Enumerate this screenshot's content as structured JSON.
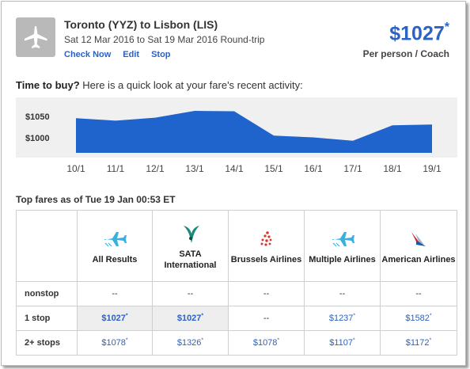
{
  "header": {
    "route": "Toronto (YYZ) to Lisbon (LIS)",
    "dates": "Sat 12 Mar 2016 to Sat 19 Mar 2016 Round-trip",
    "links": [
      "Check Now",
      "Edit",
      "Stop"
    ],
    "price": "$1027",
    "price_mark": "*",
    "per": "Per person / Coach"
  },
  "time_to_buy": {
    "bold": "Time to buy?",
    "rest": " Here is a quick look at your fare's recent activity:"
  },
  "chart_data": {
    "type": "area",
    "x": [
      "10/1",
      "11/1",
      "12/1",
      "13/1",
      "14/1",
      "15/1",
      "16/1",
      "17/1",
      "18/1",
      "19/1"
    ],
    "values": [
      1046,
      1040,
      1047,
      1063,
      1062,
      1005,
      1001,
      993,
      1029,
      1031
    ],
    "yticks": [
      "$1050",
      "$1000"
    ],
    "ylim": [
      970,
      1080
    ],
    "color": "#1f63cc"
  },
  "top_fares_label": "Top fares as of Tue 19 Jan 00:53 ET",
  "table": {
    "airlines": [
      "All Results",
      "SATA International",
      "Brussels Airlines",
      "Multiple Airlines",
      "American Airlines"
    ],
    "logos": [
      "plane-cyan-icon",
      "sata-bird-icon",
      "brussels-dots-icon",
      "plane-cyan-icon",
      "american-eagle-icon"
    ],
    "rows": [
      {
        "label": "nonstop",
        "cells": [
          "--",
          "--",
          "--",
          "--",
          "--"
        ]
      },
      {
        "label": "1 stop",
        "cells": [
          "$1027",
          "$1027",
          "--",
          "$1237",
          "$1582"
        ]
      },
      {
        "label": "2+ stops",
        "cells": [
          "$1078",
          "$1326",
          "$1078",
          "$1107",
          "$1172"
        ]
      }
    ],
    "fare_mark": "*"
  }
}
